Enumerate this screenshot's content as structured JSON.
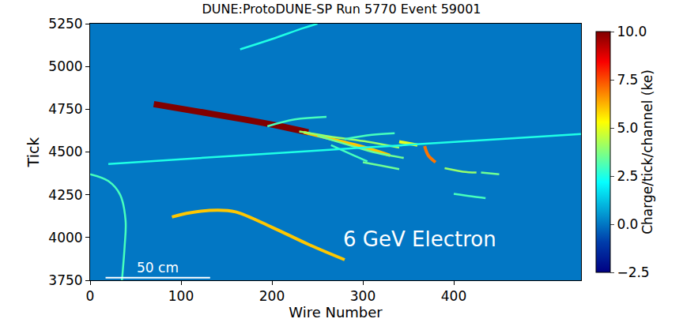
{
  "chart_data": {
    "type": "event_display",
    "title": "DUNE:ProtoDUNE-SP Run 5770 Event 59001",
    "xlabel": "Wire Number",
    "ylabel": "Tick",
    "xlim": [
      0,
      540
    ],
    "ylim": [
      3750,
      5250
    ],
    "xticks": [
      0,
      100,
      200,
      300,
      400
    ],
    "yticks": [
      3750,
      4000,
      4250,
      4500,
      4750,
      5000,
      5250
    ],
    "background_charge": 0,
    "colorbar": {
      "title": "Charge/tick/channel (ke)",
      "range": [
        -2.5,
        10
      ],
      "ticks": [
        {
          "value": -2.5,
          "label": "−2.5"
        },
        {
          "value": 0,
          "label": "0.0"
        },
        2.5,
        {
          "value": 5,
          "label": "5.0"
        },
        7.5,
        {
          "value": 10,
          "label": "10.0"
        }
      ]
    },
    "tracks": [
      {
        "points": [
          [
            70,
            4780
          ],
          [
            120,
            4735
          ],
          [
            170,
            4690
          ],
          [
            210,
            4650
          ],
          [
            240,
            4615
          ]
        ],
        "charge": 10
      },
      {
        "points": [
          [
            235,
            4615
          ],
          [
            270,
            4570
          ],
          [
            300,
            4530
          ],
          [
            330,
            4480
          ]
        ],
        "charge": 6
      },
      {
        "points": [
          [
            230,
            4620
          ],
          [
            270,
            4585
          ],
          [
            305,
            4560
          ],
          [
            340,
            4525
          ]
        ],
        "charge": 4
      },
      {
        "points": [
          [
            250,
            4595
          ],
          [
            285,
            4540
          ],
          [
            315,
            4495
          ],
          [
            345,
            4465
          ]
        ],
        "charge": 3.5
      },
      {
        "points": [
          [
            195,
            4650
          ],
          [
            225,
            4690
          ],
          [
            260,
            4705
          ]
        ],
        "charge": 3
      },
      {
        "points": [
          [
            280,
            4575
          ],
          [
            310,
            4600
          ],
          [
            335,
            4610
          ]
        ],
        "charge": 3
      },
      {
        "points": [
          [
            300,
            4440
          ],
          [
            320,
            4420
          ],
          [
            340,
            4400
          ]
        ],
        "charge": 3.5
      },
      {
        "points": [
          [
            265,
            4540
          ],
          [
            290,
            4480
          ],
          [
            305,
            4445
          ]
        ],
        "charge": 3
      },
      {
        "points": [
          [
            340,
            4560
          ],
          [
            360,
            4540
          ]
        ],
        "charge": 5
      },
      {
        "points": [
          [
            368,
            4535
          ],
          [
            372,
            4480
          ],
          [
            380,
            4440
          ]
        ],
        "charge": 7
      },
      {
        "points": [
          [
            390,
            4405
          ],
          [
            410,
            4385
          ],
          [
            425,
            4380
          ]
        ],
        "charge": 4
      },
      {
        "points": [
          [
            400,
            4255
          ],
          [
            420,
            4240
          ],
          [
            435,
            4230
          ]
        ],
        "charge": 3
      },
      {
        "points": [
          [
            430,
            4380
          ],
          [
            450,
            4370
          ]
        ],
        "charge": 3.5
      },
      {
        "points": [
          [
            20,
            4430
          ],
          [
            150,
            4475
          ],
          [
            300,
            4525
          ],
          [
            450,
            4575
          ],
          [
            540,
            4605
          ]
        ],
        "charge": 2.5
      },
      {
        "points": [
          [
            165,
            5100
          ],
          [
            200,
            5160
          ],
          [
            235,
            5225
          ],
          [
            250,
            5250
          ]
        ],
        "charge": 2.5
      },
      {
        "points": [
          [
            90,
            4120
          ],
          [
            110,
            4145
          ],
          [
            140,
            4160
          ],
          [
            160,
            4150
          ],
          [
            200,
            4060
          ],
          [
            240,
            3960
          ],
          [
            280,
            3870
          ]
        ],
        "charge": 6
      },
      {
        "points": [
          [
            0,
            4370
          ],
          [
            20,
            4330
          ],
          [
            33,
            4250
          ],
          [
            39,
            4100
          ],
          [
            38,
            3950
          ],
          [
            35,
            3750
          ]
        ],
        "charge": 3
      }
    ],
    "annotations": [
      {
        "text": "6 GeV Electron",
        "x": 363,
        "y": 3990
      }
    ],
    "scale_bar": {
      "label": "50 cm",
      "x": [
        17,
        132
      ],
      "y": 3765
    }
  }
}
